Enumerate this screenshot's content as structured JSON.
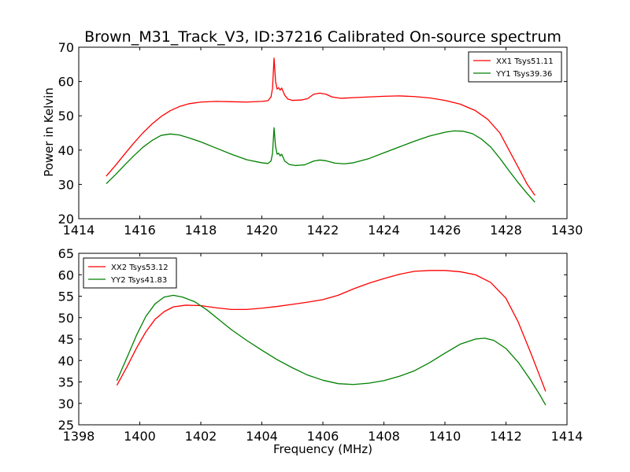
{
  "figure": {
    "title": "Brown_M31_Track_V3, ID:37216 Calibrated On-source spectrum",
    "ylabel": "Power in Kelvin",
    "xlabel": "Frequency (MHz)"
  },
  "chart_data": [
    {
      "type": "line",
      "title": "Brown_M31_Track_V3, ID:37216 Calibrated On-source spectrum",
      "ylabel": "Power in Kelvin",
      "xlabel": "",
      "xlim": [
        1414,
        1430
      ],
      "ylim": [
        20,
        70
      ],
      "xticks": [
        1414,
        1416,
        1418,
        1420,
        1422,
        1424,
        1426,
        1428,
        1430
      ],
      "yticks": [
        20,
        30,
        40,
        50,
        60,
        70
      ],
      "grid": false,
      "legend_position": "top-right",
      "series": [
        {
          "name": "XX1 Tsys51.11",
          "color": "#ff0000",
          "points": [
            [
              1414.9,
              32.4
            ],
            [
              1415.2,
              35.5
            ],
            [
              1415.5,
              38.8
            ],
            [
              1415.8,
              42.0
            ],
            [
              1416.1,
              45.0
            ],
            [
              1416.4,
              47.6
            ],
            [
              1416.7,
              49.8
            ],
            [
              1417.0,
              51.5
            ],
            [
              1417.3,
              52.7
            ],
            [
              1417.6,
              53.5
            ],
            [
              1418.0,
              54.0
            ],
            [
              1418.5,
              54.2
            ],
            [
              1419.0,
              54.1
            ],
            [
              1419.5,
              54.0
            ],
            [
              1420.0,
              54.2
            ],
            [
              1420.2,
              54.4
            ],
            [
              1420.3,
              55.5
            ],
            [
              1420.35,
              58.0
            ],
            [
              1420.4,
              66.8
            ],
            [
              1420.45,
              60.0
            ],
            [
              1420.5,
              57.8
            ],
            [
              1420.55,
              58.2
            ],
            [
              1420.6,
              57.5
            ],
            [
              1420.65,
              58.1
            ],
            [
              1420.75,
              56.0
            ],
            [
              1420.85,
              54.9
            ],
            [
              1421.0,
              54.5
            ],
            [
              1421.3,
              54.6
            ],
            [
              1421.5,
              55.0
            ],
            [
              1421.7,
              56.3
            ],
            [
              1421.9,
              56.6
            ],
            [
              1422.1,
              56.3
            ],
            [
              1422.3,
              55.5
            ],
            [
              1422.6,
              55.1
            ],
            [
              1423.0,
              55.3
            ],
            [
              1423.5,
              55.5
            ],
            [
              1424.0,
              55.7
            ],
            [
              1424.5,
              55.8
            ],
            [
              1425.0,
              55.6
            ],
            [
              1425.5,
              55.2
            ],
            [
              1426.0,
              54.5
            ],
            [
              1426.5,
              53.4
            ],
            [
              1427.0,
              51.5
            ],
            [
              1427.4,
              49.0
            ],
            [
              1427.8,
              45.0
            ],
            [
              1428.1,
              40.0
            ],
            [
              1428.4,
              35.0
            ],
            [
              1428.7,
              30.0
            ],
            [
              1428.95,
              26.8
            ]
          ]
        },
        {
          "name": "YY1 Tsys39.36",
          "color": "#008000",
          "points": [
            [
              1414.9,
              30.2
            ],
            [
              1415.2,
              32.8
            ],
            [
              1415.5,
              35.6
            ],
            [
              1415.8,
              38.3
            ],
            [
              1416.1,
              40.8
            ],
            [
              1416.4,
              42.8
            ],
            [
              1416.7,
              44.3
            ],
            [
              1417.0,
              44.7
            ],
            [
              1417.3,
              44.4
            ],
            [
              1417.6,
              43.6
            ],
            [
              1418.0,
              42.4
            ],
            [
              1418.5,
              40.6
            ],
            [
              1419.0,
              38.8
            ],
            [
              1419.5,
              37.2
            ],
            [
              1420.0,
              36.3
            ],
            [
              1420.2,
              36.1
            ],
            [
              1420.3,
              36.8
            ],
            [
              1420.35,
              39.0
            ],
            [
              1420.4,
              46.5
            ],
            [
              1420.45,
              41.0
            ],
            [
              1420.5,
              38.8
            ],
            [
              1420.55,
              39.1
            ],
            [
              1420.6,
              38.3
            ],
            [
              1420.65,
              38.8
            ],
            [
              1420.75,
              36.8
            ],
            [
              1420.9,
              35.8
            ],
            [
              1421.1,
              35.5
            ],
            [
              1421.4,
              35.7
            ],
            [
              1421.7,
              36.8
            ],
            [
              1421.9,
              37.1
            ],
            [
              1422.1,
              36.9
            ],
            [
              1422.4,
              36.2
            ],
            [
              1422.7,
              36.0
            ],
            [
              1423.0,
              36.3
            ],
            [
              1423.5,
              37.5
            ],
            [
              1424.0,
              39.2
            ],
            [
              1424.5,
              40.9
            ],
            [
              1425.0,
              42.6
            ],
            [
              1425.5,
              44.1
            ],
            [
              1426.0,
              45.2
            ],
            [
              1426.3,
              45.6
            ],
            [
              1426.6,
              45.5
            ],
            [
              1426.9,
              44.8
            ],
            [
              1427.2,
              43.2
            ],
            [
              1427.5,
              40.9
            ],
            [
              1427.8,
              37.6
            ],
            [
              1428.1,
              34.0
            ],
            [
              1428.4,
              30.5
            ],
            [
              1428.7,
              27.3
            ],
            [
              1428.95,
              24.8
            ]
          ]
        }
      ]
    },
    {
      "type": "line",
      "title": "",
      "ylabel": "",
      "xlabel": "Frequency (MHz)",
      "xlim": [
        1398,
        1414
      ],
      "ylim": [
        25,
        65
      ],
      "xticks": [
        1398,
        1400,
        1402,
        1404,
        1406,
        1408,
        1410,
        1412,
        1414
      ],
      "yticks": [
        25,
        30,
        35,
        40,
        45,
        50,
        55,
        60,
        65
      ],
      "grid": false,
      "legend_position": "top-left",
      "series": [
        {
          "name": "XX2 Tsys53.12",
          "color": "#ff0000",
          "points": [
            [
              1399.25,
              34.2
            ],
            [
              1399.6,
              38.8
            ],
            [
              1399.9,
              43.0
            ],
            [
              1400.2,
              46.7
            ],
            [
              1400.5,
              49.6
            ],
            [
              1400.8,
              51.4
            ],
            [
              1401.1,
              52.5
            ],
            [
              1401.5,
              52.9
            ],
            [
              1402.0,
              52.8
            ],
            [
              1402.5,
              52.3
            ],
            [
              1403.0,
              51.9
            ],
            [
              1403.5,
              51.9
            ],
            [
              1404.0,
              52.2
            ],
            [
              1404.5,
              52.6
            ],
            [
              1405.0,
              53.1
            ],
            [
              1405.5,
              53.6
            ],
            [
              1406.0,
              54.2
            ],
            [
              1406.5,
              55.2
            ],
            [
              1407.0,
              56.7
            ],
            [
              1407.5,
              58.0
            ],
            [
              1408.0,
              59.1
            ],
            [
              1408.5,
              60.1
            ],
            [
              1409.0,
              60.8
            ],
            [
              1409.5,
              61.0
            ],
            [
              1410.0,
              61.0
            ],
            [
              1410.5,
              60.7
            ],
            [
              1411.0,
              60.0
            ],
            [
              1411.5,
              58.2
            ],
            [
              1412.0,
              54.5
            ],
            [
              1412.4,
              49.0
            ],
            [
              1412.8,
              42.0
            ],
            [
              1413.1,
              36.5
            ],
            [
              1413.3,
              32.8
            ]
          ]
        },
        {
          "name": "YY2 Tsys41.83",
          "color": "#008000",
          "points": [
            [
              1399.25,
              35.3
            ],
            [
              1399.6,
              41.0
            ],
            [
              1399.9,
              46.0
            ],
            [
              1400.2,
              50.3
            ],
            [
              1400.5,
              53.2
            ],
            [
              1400.8,
              54.8
            ],
            [
              1401.1,
              55.2
            ],
            [
              1401.4,
              54.8
            ],
            [
              1401.8,
              53.7
            ],
            [
              1402.2,
              51.8
            ],
            [
              1402.6,
              49.5
            ],
            [
              1403.0,
              47.2
            ],
            [
              1403.5,
              44.7
            ],
            [
              1404.0,
              42.4
            ],
            [
              1404.5,
              40.2
            ],
            [
              1405.0,
              38.3
            ],
            [
              1405.5,
              36.6
            ],
            [
              1406.0,
              35.4
            ],
            [
              1406.5,
              34.6
            ],
            [
              1407.0,
              34.4
            ],
            [
              1407.5,
              34.7
            ],
            [
              1408.0,
              35.3
            ],
            [
              1408.5,
              36.3
            ],
            [
              1409.0,
              37.6
            ],
            [
              1409.5,
              39.5
            ],
            [
              1410.0,
              41.7
            ],
            [
              1410.5,
              43.8
            ],
            [
              1411.0,
              45.0
            ],
            [
              1411.3,
              45.2
            ],
            [
              1411.6,
              44.7
            ],
            [
              1412.0,
              42.8
            ],
            [
              1412.4,
              39.6
            ],
            [
              1412.8,
              35.5
            ],
            [
              1413.1,
              32.1
            ],
            [
              1413.3,
              29.6
            ]
          ]
        }
      ]
    }
  ]
}
